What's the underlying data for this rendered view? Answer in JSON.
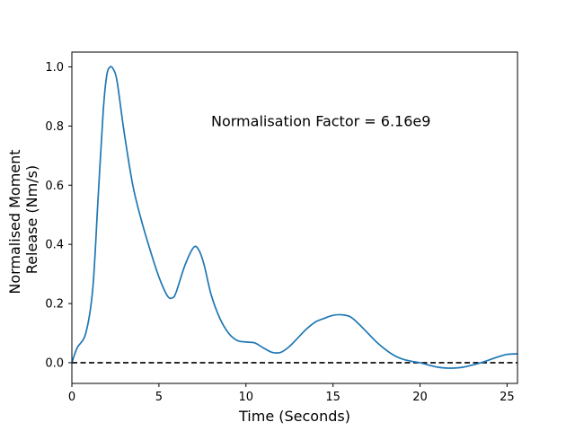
{
  "chart_data": {
    "type": "line",
    "title": "",
    "xlabel": "Time (Seconds)",
    "ylabel_lines": [
      "Normalised Moment",
      "Release (Nm/s)"
    ],
    "xlim": [
      0,
      25.6
    ],
    "ylim": [
      -0.07,
      1.05
    ],
    "x_ticks": [
      0,
      5,
      10,
      15,
      20,
      25
    ],
    "x_tick_labels": [
      "0",
      "5",
      "10",
      "15",
      "20",
      "25"
    ],
    "y_ticks": [
      0.0,
      0.2,
      0.4,
      0.6,
      0.8,
      1.0
    ],
    "y_tick_labels": [
      "0.0",
      "0.2",
      "0.4",
      "0.6",
      "0.8",
      "1.0"
    ],
    "grid": false,
    "series": [
      {
        "color": "#1f77b4",
        "x": [
          0,
          0.3,
          0.8,
          1.2,
          1.5,
          1.8,
          2.0,
          2.2,
          2.4,
          2.6,
          3.0,
          3.5,
          4.0,
          4.5,
          5.0,
          5.5,
          5.8,
          6.0,
          6.5,
          7.0,
          7.3,
          7.6,
          8.0,
          8.5,
          9.0,
          9.5,
          10.0,
          10.5,
          11.0,
          11.5,
          12.0,
          12.5,
          13.0,
          13.5,
          14.0,
          14.5,
          15.0,
          15.5,
          16.0,
          16.5,
          17.0,
          17.5,
          18.0,
          18.5,
          19.0,
          19.5,
          20.0,
          20.5,
          21.0,
          21.5,
          22.0,
          22.5,
          23.0,
          23.5,
          24.0,
          24.5,
          25.0,
          25.6
        ],
        "y": [
          0.0,
          0.05,
          0.1,
          0.25,
          0.55,
          0.85,
          0.97,
          1.0,
          0.99,
          0.95,
          0.78,
          0.6,
          0.48,
          0.38,
          0.29,
          0.225,
          0.22,
          0.24,
          0.33,
          0.39,
          0.38,
          0.33,
          0.23,
          0.15,
          0.1,
          0.075,
          0.07,
          0.067,
          0.05,
          0.035,
          0.035,
          0.055,
          0.085,
          0.115,
          0.138,
          0.15,
          0.16,
          0.162,
          0.155,
          0.13,
          0.1,
          0.07,
          0.045,
          0.025,
          0.012,
          0.005,
          0.0,
          -0.008,
          -0.015,
          -0.018,
          -0.018,
          -0.015,
          -0.008,
          0.0,
          0.01,
          0.02,
          0.028,
          0.03
        ]
      }
    ],
    "reference_line": {
      "y": 0,
      "style": "dashed",
      "color": "#000000"
    },
    "annotations": [
      {
        "text": "Normalisation Factor = 6.16e9",
        "x": 8.0,
        "y": 0.8
      }
    ]
  }
}
